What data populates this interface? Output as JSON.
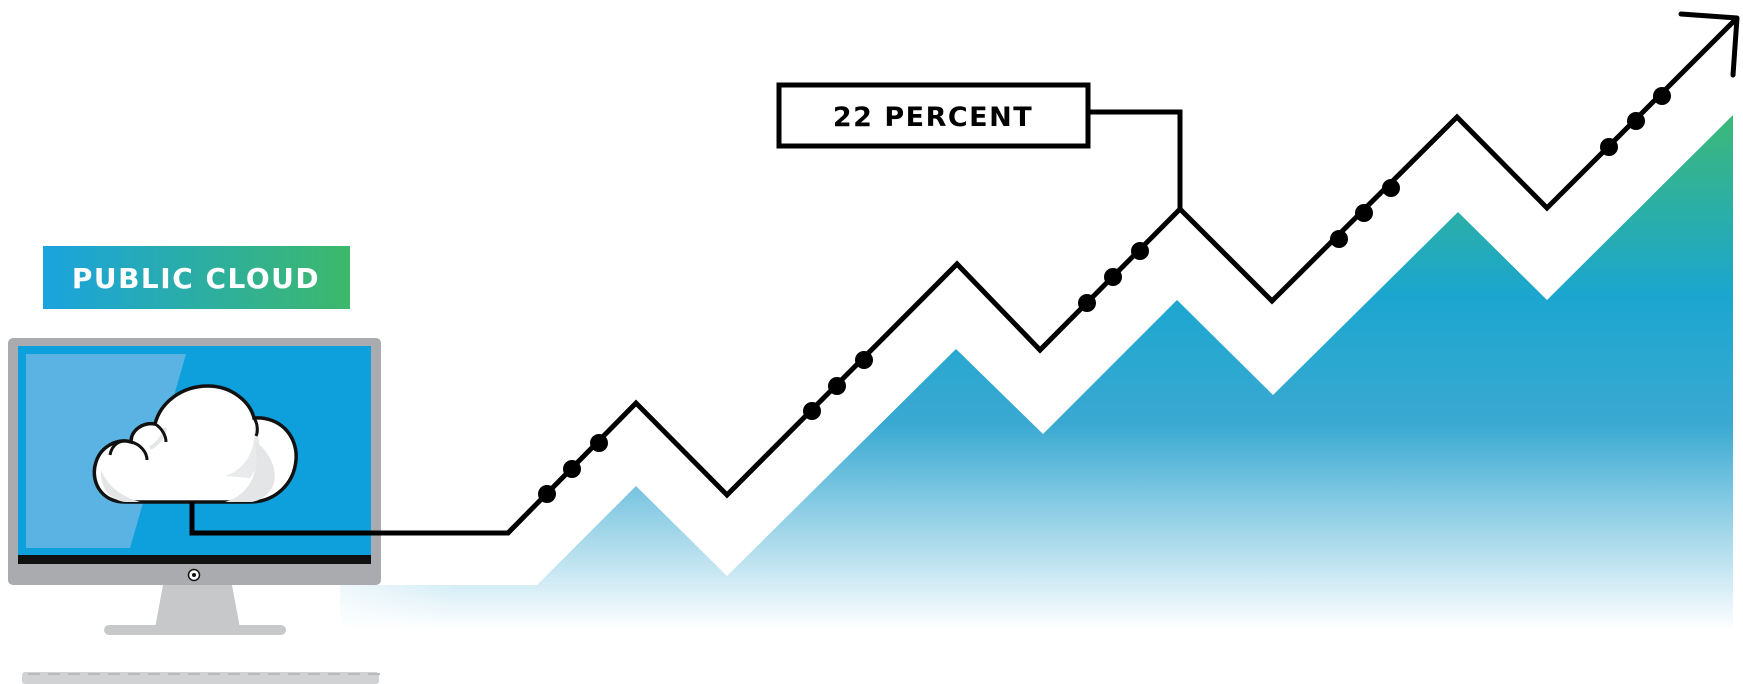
{
  "badge": {
    "label": "PUBLIC CLOUD",
    "gradient_start": "#1aa3df",
    "gradient_end": "#3db86a"
  },
  "callout": {
    "label": "22 PERCENT"
  },
  "colors": {
    "line": "#000000",
    "area_top": "#3cb878",
    "area_mid": "#1ba6cf",
    "screen": "#0ea0dc",
    "bezel": "#a9abae",
    "cloud_fill": "#ffffff",
    "cloud_shade": "#e4e5e6"
  },
  "icons": {
    "computer": "monitor-icon",
    "cloud": "cloud-icon",
    "arrow": "arrow-up-right-icon"
  }
}
